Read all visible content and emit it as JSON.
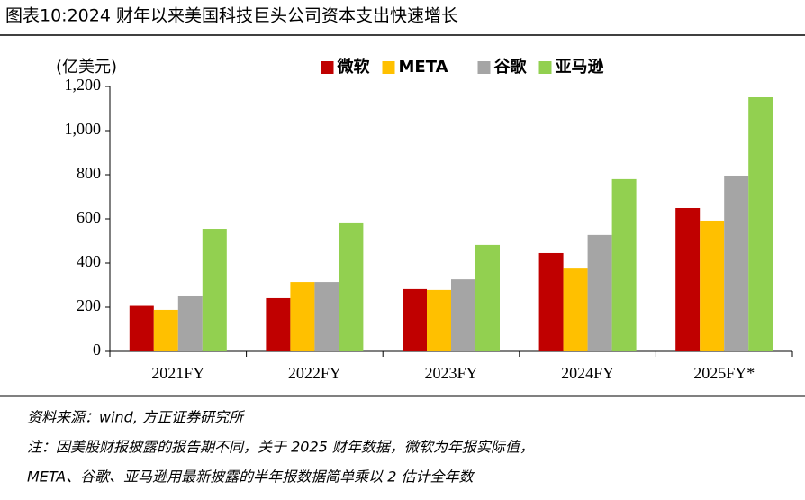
{
  "chart_data": {
    "type": "bar",
    "title": "图表10:2024 财年以来美国科技巨头公司资本支出快速增长",
    "y_label": "(亿美元)",
    "categories": [
      "2021FY",
      "2022FY",
      "2023FY",
      "2024FY",
      "2025FY*"
    ],
    "series": [
      {
        "name": "微软",
        "color": "#c00000",
        "values": [
          206,
          241,
          282,
          445,
          649
        ]
      },
      {
        "name": "META",
        "color": "#ffc000",
        "values": [
          188,
          314,
          278,
          375,
          592
        ]
      },
      {
        "name": "谷歌",
        "color": "#a5a5a5",
        "values": [
          249,
          314,
          326,
          527,
          796
        ]
      },
      {
        "name": "亚马逊",
        "color": "#92d050",
        "values": [
          555,
          584,
          482,
          780,
          1151
        ]
      }
    ],
    "ylim": [
      0,
      1200
    ],
    "yticks": [
      0,
      200,
      400,
      600,
      800,
      {
        "value": 1000,
        "label": "1,000"
      },
      {
        "value": 1200,
        "label": "1,200"
      }
    ],
    "legend": "top"
  },
  "source": "资料来源：wind, 方正证券研究所",
  "notes": [
    "注：因美股财报披露的报告期不同，关于 2025 财年数据，微软为年报实际值，",
    "META、谷歌、亚马逊用最新披露的半年报数据简单乘以 2 估计全年数"
  ]
}
